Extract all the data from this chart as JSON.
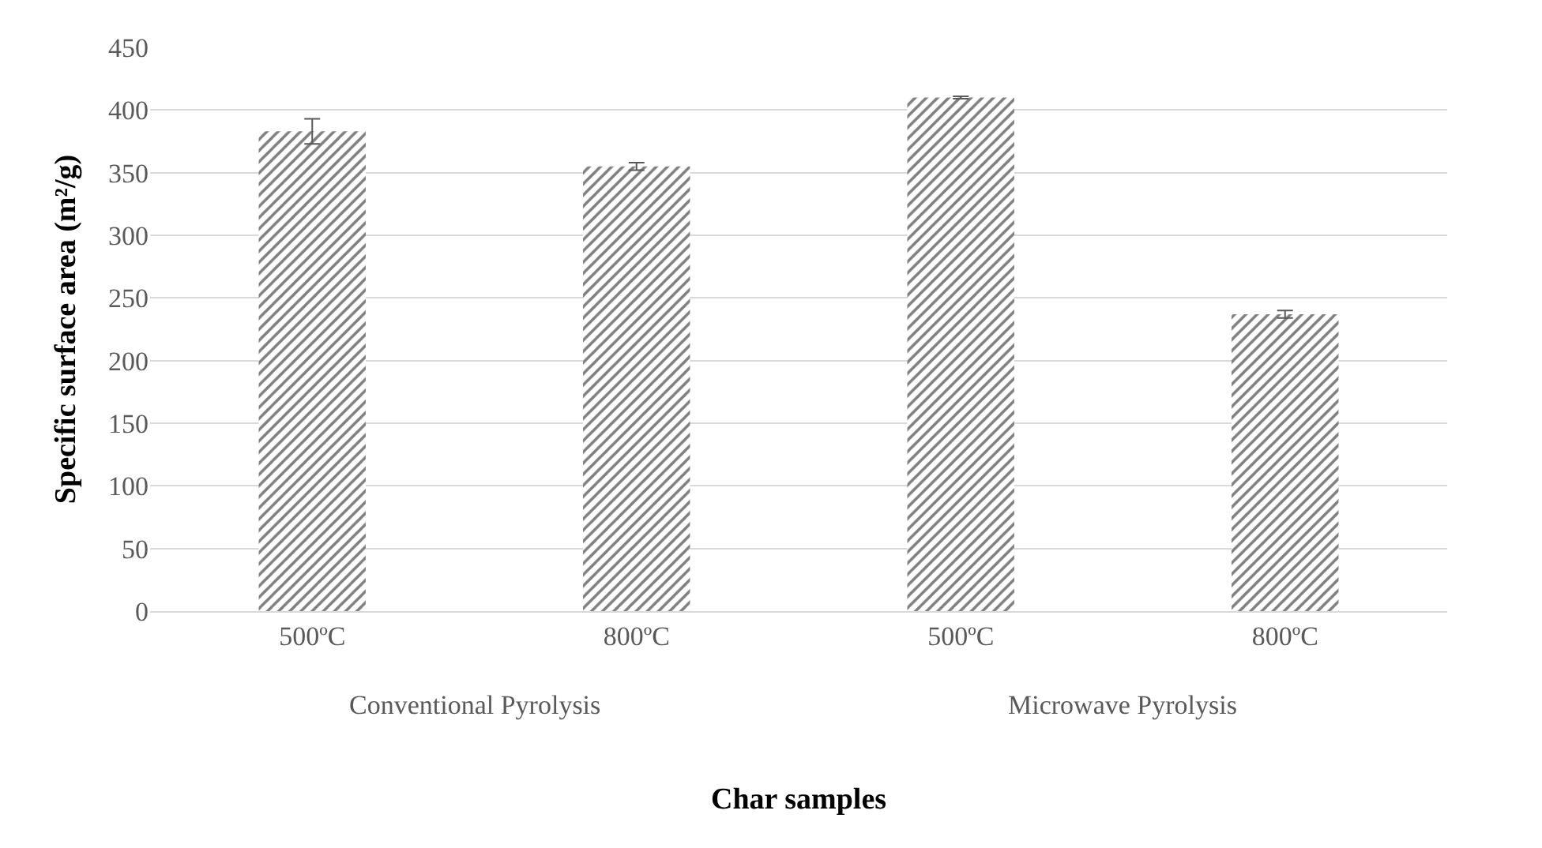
{
  "chart_data": {
    "type": "bar",
    "xlabel": "Char samples",
    "ylabel": "Specific surface area (m²/g)",
    "categories": [
      "500ºC",
      "800ºC",
      "500ºC",
      "800ºC"
    ],
    "values": [
      383,
      355,
      410,
      237
    ],
    "errors": [
      10,
      3,
      1,
      3
    ],
    "color": "#000000",
    "ylim": [
      0,
      450
    ],
    "yticks": [
      0,
      50,
      100,
      150,
      200,
      250,
      300,
      350,
      400,
      450
    ],
    "grid": "y",
    "annotations": [
      "Conventional Pyrolysis",
      "Microwave Pyrolysis"
    ]
  }
}
